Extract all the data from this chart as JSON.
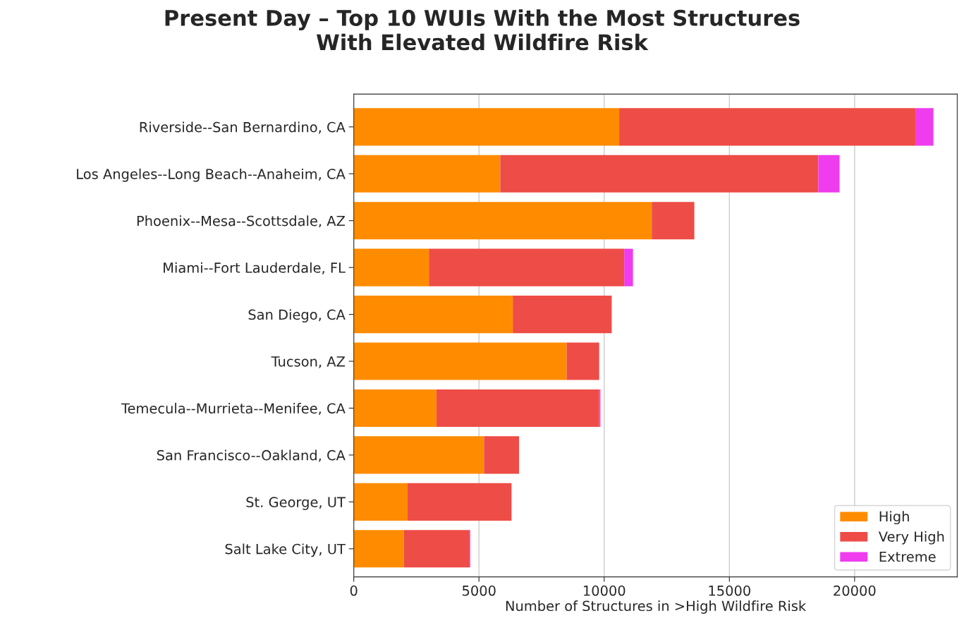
{
  "chart_data": {
    "type": "bar",
    "orientation": "horizontal",
    "stacked": true,
    "title": "Present Day – Top 10 WUIs With the Most Structures\nWith Elevated Wildfire Risk",
    "xlabel": "Number of Structures in >High Wildfire Risk",
    "categories": [
      "Riverside--San Bernardino, CA",
      "Los Angeles--Long Beach--Anaheim, CA",
      "Phoenix--Mesa--Scottsdale, AZ",
      "Miami--Fort Lauderdale, FL",
      "San Diego, CA",
      "Tucson, AZ",
      "Temecula--Murrieta--Menifee, CA",
      "San Francisco--Oakland, CA",
      "St. George, UT",
      "Salt Lake City, UT"
    ],
    "series": [
      {
        "name": "High",
        "color": "#ff8c00",
        "values": [
          10600,
          5850,
          11900,
          3000,
          6350,
          8500,
          3300,
          5200,
          2150,
          2000
        ]
      },
      {
        "name": "Very High",
        "color": "#ee4c46",
        "values": [
          11850,
          12700,
          1700,
          7800,
          3950,
          1300,
          6500,
          1400,
          4150,
          2600
        ]
      },
      {
        "name": "Extreme",
        "color": "#ee3cee",
        "values": [
          700,
          850,
          null,
          350,
          null,
          null,
          50,
          null,
          null,
          50
        ]
      }
    ],
    "xlim": [
      0,
      24100
    ],
    "xticks": [
      0,
      5000,
      10000,
      15000,
      20000
    ],
    "grid": "x",
    "legend": "bottom right"
  }
}
